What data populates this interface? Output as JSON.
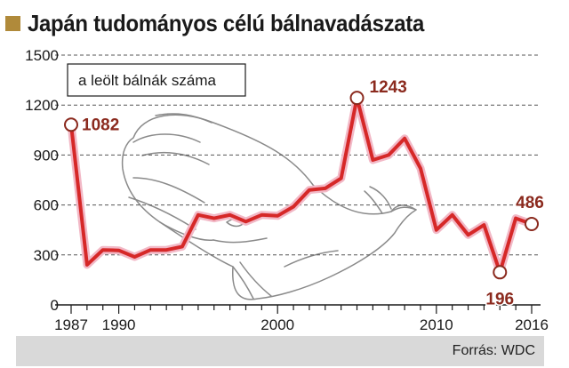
{
  "title": "Japán tudományos célú bálnavadászata",
  "source": "Forrás: WDC",
  "colors": {
    "accent_square": "#b08a3a",
    "line": "#d62828",
    "line_halo": "#f2b8c6",
    "label": "#8b2a1e",
    "grid": "#555555"
  },
  "icons": {
    "background": "sperm-whale-illustration"
  },
  "chart_data": {
    "type": "line",
    "title": "Japán tudományos célú bálnavadászata",
    "xlabel": "",
    "ylabel": "",
    "legend": "a leölt bálnák száma",
    "legend_position": "top-left",
    "grid": "horizontal-dashed",
    "xlim": [
      1987,
      2016
    ],
    "ylim": [
      0,
      1500
    ],
    "yticks": [
      0,
      300,
      600,
      900,
      1200,
      1500
    ],
    "xticks": [
      1987,
      1990,
      2000,
      2010,
      2016
    ],
    "series": [
      {
        "name": "a leölt bálnák száma",
        "x": [
          1987,
          1988,
          1989,
          1990,
          1991,
          1992,
          1993,
          1994,
          1995,
          1996,
          1997,
          1998,
          1999,
          2000,
          2001,
          2002,
          2003,
          2004,
          2005,
          2006,
          2007,
          2008,
          2009,
          2010,
          2011,
          2012,
          2013,
          2014,
          2015,
          2016
        ],
        "y": [
          1082,
          241,
          330,
          327,
          288,
          330,
          330,
          350,
          540,
          520,
          540,
          500,
          540,
          535,
          590,
          690,
          700,
          760,
          1243,
          870,
          900,
          1000,
          820,
          450,
          540,
          420,
          480,
          196,
          520,
          486
        ]
      }
    ],
    "annotations": [
      {
        "x": 1987,
        "y": 1082,
        "text": "1082"
      },
      {
        "x": 2005,
        "y": 1243,
        "text": "1243"
      },
      {
        "x": 2014,
        "y": 196,
        "text": "196"
      },
      {
        "x": 2016,
        "y": 486,
        "text": "486"
      }
    ]
  }
}
